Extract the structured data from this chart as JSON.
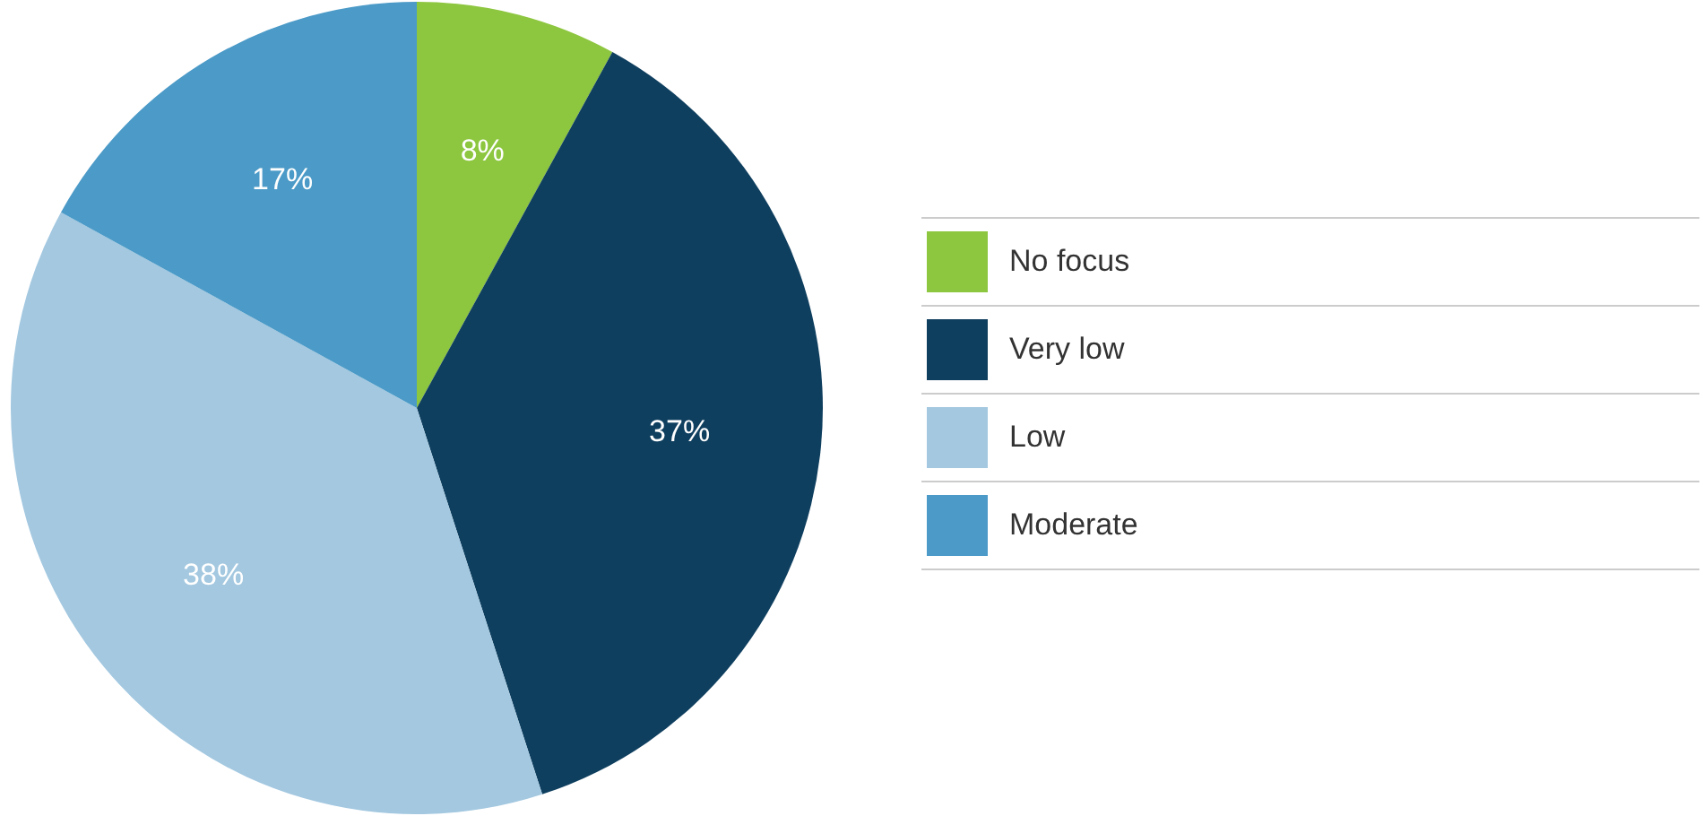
{
  "chart_data": {
    "type": "pie",
    "categories": [
      "No focus",
      "Very low",
      "Low",
      "Moderate"
    ],
    "values": [
      8,
      37,
      38,
      17
    ],
    "colors": [
      "#8dc63f",
      "#0f3f5f",
      "#a3c8e0",
      "#4b9ac7"
    ],
    "value_labels": [
      "8%",
      "37%",
      "38%",
      "17%"
    ],
    "legend": "right"
  }
}
